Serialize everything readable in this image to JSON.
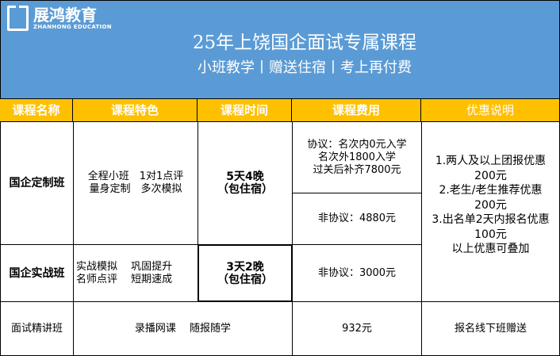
{
  "brand": {
    "name": "展鸿教育",
    "english": "ZHANHONG EDUCATION"
  },
  "header": {
    "title": "25年上饶国企面试专属课程",
    "subtitle": "小班教学丨赠送住宿丨考上再付费"
  },
  "colors": {
    "banner": "#5b9bd5",
    "header_row": "#ffc000"
  },
  "table": {
    "columns": [
      "课程名称",
      "课程特色",
      "课程时间",
      "课程费用",
      "优惠说明"
    ],
    "rows": [
      {
        "name": "国企定制班",
        "features": "全程小班　1对1点评\n量身定制　多次模拟",
        "time": "5天4晚\n（包住宿）",
        "fee_agreement": "协议：名次内0元入学\n名次外1800入学\n过关后补齐7800元",
        "fee_non_agreement": "非协议：4880元"
      },
      {
        "name": "国企实战班",
        "features": "实战模拟　 巩固提升\n名师点评　 短期速成",
        "time": "3天2晚\n（包住宿）",
        "fee_non_agreement": "非协议：3000元"
      },
      {
        "name": "面试精讲班",
        "features": "录播网课　 随报随学",
        "fee": "932元",
        "discount": "报名线下班赠送"
      }
    ],
    "discounts": "1.两人及以上团报优惠\n200元\n2.老生/老生推荐优惠\n200元\n3.出名单2天内报名优惠\n100元\n以上优惠可叠加"
  }
}
